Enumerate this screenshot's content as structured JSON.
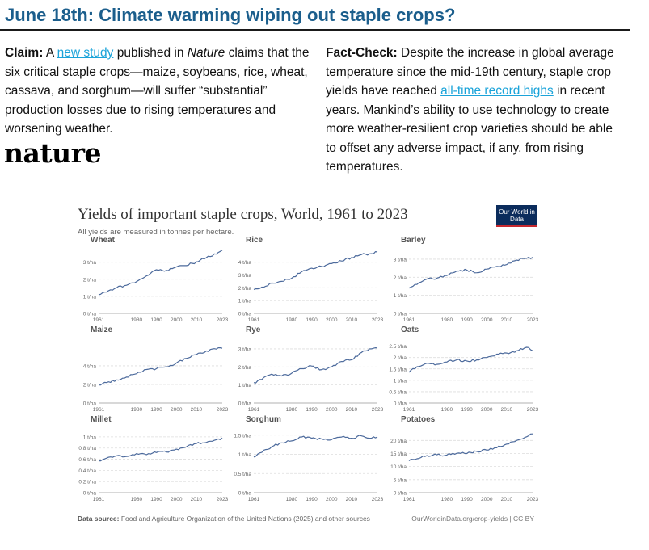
{
  "headline": "June 18th: Climate warming wiping out staple crops?",
  "claim": {
    "label": "Claim:",
    "t1": " A ",
    "link": "new study",
    "t2": " published in ",
    "journal": "Nature",
    "t3": " claims that the six critical staple crops—maize, soybeans, rice, wheat, cassava, and sorghum—will suffer “substantial” production losses due to rising temperatures and worsening weather."
  },
  "logo_text": "nature",
  "factcheck": {
    "label": "Fact-Check:",
    "t1": " Despite the increase in global average temperature since the mid-19th century, staple crop yields have reached ",
    "link": "all-time record highs",
    "t2": " in recent years. Mankind’s ability to use technology to create more weather-resilient crop varieties should be able to offset any adverse impact, if any, from rising temperatures."
  },
  "figure": {
    "title": "Yields of important staple crops, World, 1961 to 2023",
    "subtitle": "All yields are measured in tonnes per hectare.",
    "logo": "Our World in Data",
    "source_label": "Data source:",
    "source_text": " Food and Agriculture Organization of the United Nations (2025) and other sources",
    "credit": "OurWorldinData.org/crop-yields | CC BY",
    "line_color": "#4c6a9c"
  },
  "chart_data": [
    {
      "type": "line",
      "title": "Wheat",
      "x_ticks": [
        "1961",
        "1980",
        "1990",
        "2000",
        "2010",
        "2023"
      ],
      "y_ticks": [
        "0 t/ha",
        "1 t/ha",
        "2 t/ha",
        "3 t/ha"
      ],
      "ylim": [
        0,
        3.6
      ],
      "x": [
        1961,
        1965,
        1970,
        1975,
        1980,
        1985,
        1990,
        1995,
        2000,
        2005,
        2010,
        2015,
        2020,
        2023
      ],
      "values": [
        1.09,
        1.25,
        1.5,
        1.65,
        1.86,
        2.2,
        2.56,
        2.52,
        2.72,
        2.8,
        3.02,
        3.27,
        3.47,
        3.7
      ]
    },
    {
      "type": "line",
      "title": "Rice",
      "x_ticks": [
        "1961",
        "1980",
        "1990",
        "2000",
        "2010",
        "2023"
      ],
      "y_ticks": [
        "0 t/ha",
        "1 t/ha",
        "2 t/ha",
        "3 t/ha",
        "4 t/ha"
      ],
      "ylim": [
        0,
        4.8
      ],
      "x": [
        1961,
        1965,
        1970,
        1975,
        1980,
        1985,
        1990,
        1995,
        2000,
        2005,
        2010,
        2015,
        2020,
        2023
      ],
      "values": [
        1.87,
        2.05,
        2.37,
        2.5,
        2.75,
        3.25,
        3.53,
        3.66,
        3.89,
        4.09,
        4.37,
        4.6,
        4.67,
        4.8
      ]
    },
    {
      "type": "line",
      "title": "Barley",
      "x_ticks": [
        "1961",
        "1980",
        "1990",
        "2000",
        "2010",
        "2023"
      ],
      "y_ticks": [
        "0 t/ha",
        "1 t/ha",
        "2 t/ha",
        "3 t/ha"
      ],
      "ylim": [
        0,
        3.4
      ],
      "x": [
        1961,
        1965,
        1970,
        1975,
        1980,
        1985,
        1990,
        1995,
        2000,
        2005,
        2010,
        2015,
        2020,
        2023
      ],
      "values": [
        1.4,
        1.6,
        1.9,
        1.95,
        2.1,
        2.35,
        2.4,
        2.25,
        2.45,
        2.6,
        2.7,
        2.95,
        3.05,
        3.1
      ]
    },
    {
      "type": "line",
      "title": "Maize",
      "x_ticks": [
        "1961",
        "1980",
        "1990",
        "2000",
        "2010",
        "2023"
      ],
      "y_ticks": [
        "0 t/ha",
        "2 t/ha",
        "4 t/ha"
      ],
      "ylim": [
        0,
        6.6
      ],
      "x": [
        1961,
        1965,
        1970,
        1975,
        1980,
        1985,
        1990,
        1995,
        2000,
        2005,
        2010,
        2015,
        2020,
        2023
      ],
      "values": [
        1.94,
        2.2,
        2.49,
        2.8,
        3.15,
        3.6,
        3.7,
        3.9,
        4.3,
        4.8,
        5.2,
        5.6,
        5.8,
        5.9
      ]
    },
    {
      "type": "line",
      "title": "Rye",
      "x_ticks": [
        "1961",
        "1980",
        "1990",
        "2000",
        "2010",
        "2023"
      ],
      "y_ticks": [
        "0 t/ha",
        "1 t/ha",
        "2 t/ha",
        "3 t/ha"
      ],
      "ylim": [
        0,
        3.4
      ],
      "x": [
        1961,
        1965,
        1970,
        1975,
        1980,
        1985,
        1990,
        1995,
        2000,
        2005,
        2010,
        2015,
        2020,
        2023
      ],
      "values": [
        1.13,
        1.3,
        1.6,
        1.5,
        1.65,
        1.9,
        2.05,
        1.85,
        2.0,
        2.3,
        2.4,
        2.8,
        3.0,
        3.05
      ]
    },
    {
      "type": "line",
      "title": "Oats",
      "x_ticks": [
        "1961",
        "1980",
        "1990",
        "2000",
        "2010",
        "2023"
      ],
      "y_ticks": [
        "0 t/ha",
        "0.5 t/ha",
        "1 t/ha",
        "1.5 t/ha",
        "2 t/ha",
        "2.5 t/ha"
      ],
      "ylim": [
        0,
        2.7
      ],
      "x": [
        1961,
        1965,
        1970,
        1975,
        1980,
        1985,
        1990,
        1995,
        2000,
        2005,
        2010,
        2015,
        2020,
        2023
      ],
      "values": [
        1.35,
        1.6,
        1.75,
        1.7,
        1.8,
        1.9,
        1.85,
        1.9,
        2.0,
        2.15,
        2.2,
        2.3,
        2.45,
        2.3
      ]
    },
    {
      "type": "line",
      "title": "Millet",
      "x_ticks": [
        "1961",
        "1980",
        "1990",
        "2000",
        "2010",
        "2023"
      ],
      "y_ticks": [
        "0 t/ha",
        "0.2 t/ha",
        "0.4 t/ha",
        "0.6 t/ha",
        "0.8 t/ha",
        "1 t/ha"
      ],
      "ylim": [
        0,
        1.1
      ],
      "x": [
        1961,
        1965,
        1970,
        1975,
        1980,
        1985,
        1990,
        1995,
        2000,
        2005,
        2010,
        2015,
        2020,
        2023
      ],
      "values": [
        0.57,
        0.62,
        0.66,
        0.65,
        0.7,
        0.68,
        0.72,
        0.73,
        0.78,
        0.82,
        0.88,
        0.9,
        0.95,
        0.98
      ]
    },
    {
      "type": "line",
      "title": "Sorghum",
      "x_ticks": [
        "1961",
        "1980",
        "1990",
        "2000",
        "2010",
        "2023"
      ],
      "y_ticks": [
        "0 t/ha",
        "0.5 t/ha",
        "1 t/ha",
        "1.5 t/ha"
      ],
      "ylim": [
        0,
        1.6
      ],
      "x": [
        1961,
        1965,
        1970,
        1975,
        1980,
        1985,
        1990,
        1995,
        2000,
        2005,
        2010,
        2015,
        2020,
        2023
      ],
      "values": [
        0.93,
        1.05,
        1.2,
        1.3,
        1.35,
        1.45,
        1.42,
        1.4,
        1.38,
        1.45,
        1.42,
        1.48,
        1.42,
        1.45
      ]
    },
    {
      "type": "line",
      "title": "Potatoes",
      "x_ticks": [
        "1961",
        "1980",
        "1990",
        "2000",
        "2010",
        "2023"
      ],
      "y_ticks": [
        "0 t/ha",
        "5 t/ha",
        "10 t/ha",
        "15 t/ha",
        "20 t/ha"
      ],
      "ylim": [
        0,
        23.5
      ],
      "x": [
        1961,
        1965,
        1970,
        1975,
        1980,
        1985,
        1990,
        1995,
        2000,
        2005,
        2010,
        2015,
        2020,
        2023
      ],
      "values": [
        12.2,
        13.0,
        14.2,
        14.5,
        14.4,
        15.1,
        15.0,
        15.8,
        16.3,
        17.2,
        18.6,
        20.0,
        21.4,
        22.5
      ]
    }
  ]
}
